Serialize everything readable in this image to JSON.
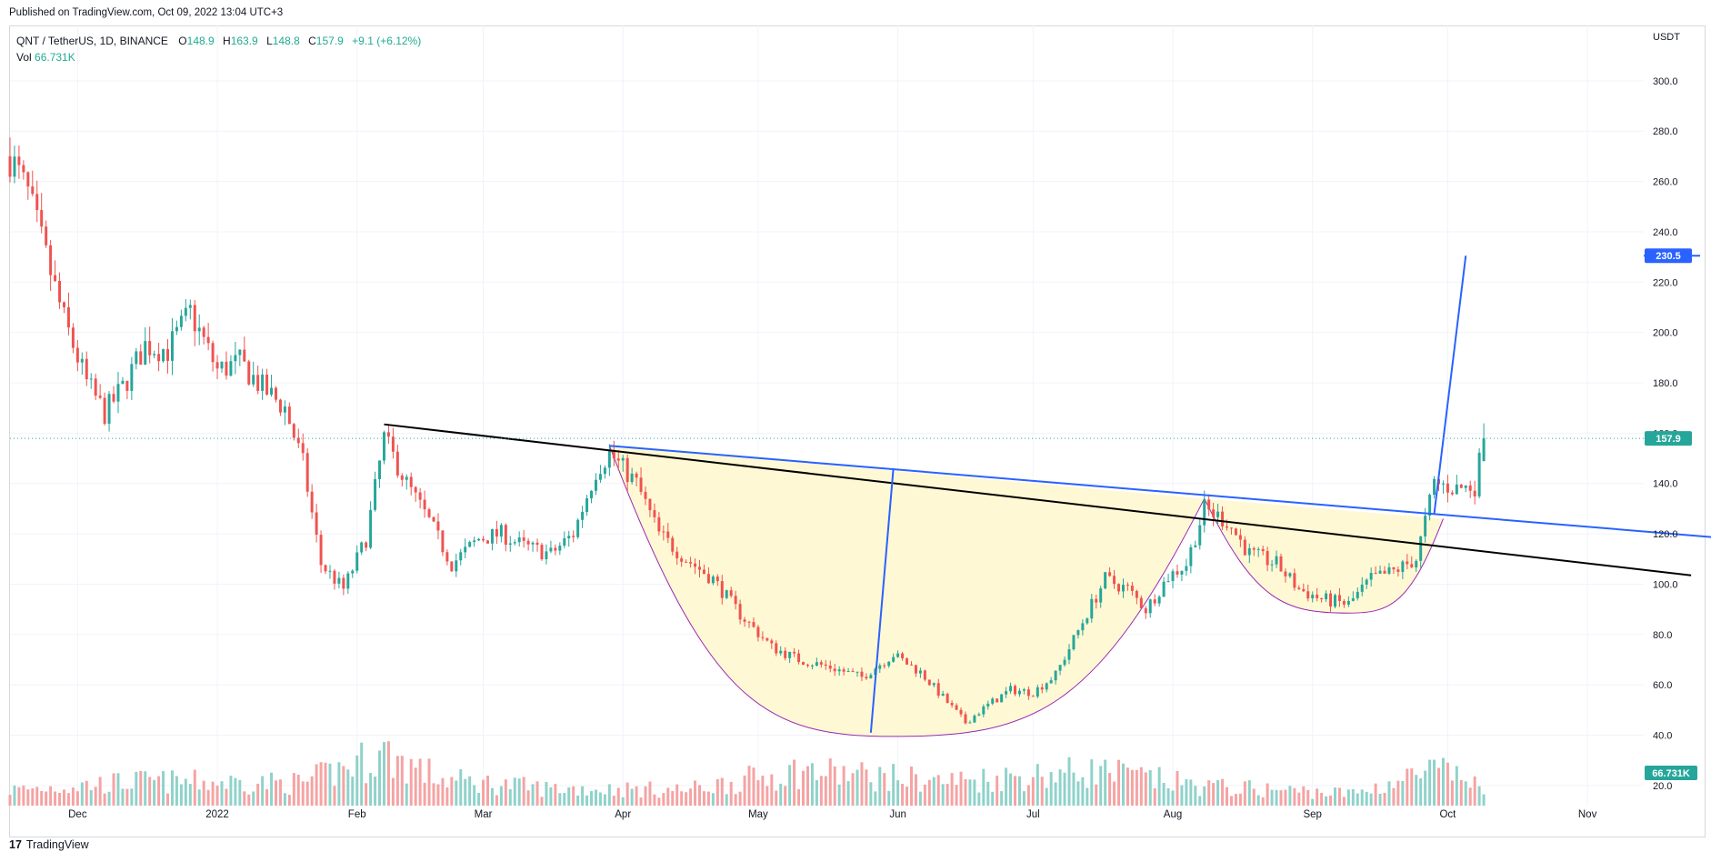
{
  "header": {
    "published": "Published on TradingView.com, Oct 09, 2022 13:04 UTC+3"
  },
  "legend": {
    "symbol": "QNT / TetherUS, 1D, BINANCE",
    "o_label": "O",
    "o_value": "148.9",
    "h_label": "H",
    "h_value": "163.9",
    "l_label": "L",
    "l_value": "148.8",
    "c_label": "C",
    "c_value": "157.9",
    "change": "+9.1 (+6.12%)",
    "vol_label": "Vol",
    "vol_value": "66.731K"
  },
  "footer": {
    "brand": "TradingView",
    "logo": "17"
  },
  "colors": {
    "up": "#26a69a",
    "down": "#ef5350",
    "vol_up": "#8fd2ca",
    "vol_down": "#f5a3a3",
    "trend_black": "#000000",
    "trend_blue": "#2962ff",
    "cup_fill": "#fff7cc",
    "cup_stroke": "#9c27b0",
    "price_tag": "#26a69a",
    "target_tag": "#2962ff",
    "grid": "#f0f3fa"
  },
  "chart_data": {
    "type": "candlestick",
    "currency": "USDT",
    "ylim": [
      12,
      322
    ],
    "y_ticks": [
      "300.0",
      "280.0",
      "260.0",
      "240.0",
      "220.0",
      "200.0",
      "180.0",
      "160.0",
      "140.0",
      "120.0",
      "100.0",
      "80.0",
      "60.0",
      "40.0",
      "20.0"
    ],
    "y_tick_values": [
      300,
      280,
      260,
      240,
      220,
      200,
      180,
      160,
      140,
      120,
      100,
      80,
      60,
      40,
      20
    ],
    "x_ticks": [
      "Dec",
      "2022",
      "Feb",
      "Mar",
      "Apr",
      "May",
      "Jun",
      "Jul",
      "Aug",
      "Sep",
      "Oct",
      "Nov"
    ],
    "x_tick_dates": [
      "2021-12-01",
      "2022-01-01",
      "2022-02-01",
      "2022-03-01",
      "2022-04-01",
      "2022-05-01",
      "2022-06-01",
      "2022-07-01",
      "2022-08-01",
      "2022-09-01",
      "2022-10-01",
      "2022-11-01"
    ],
    "x_range": [
      "2021-11-16",
      "2022-11-27"
    ],
    "last_price_label": "157.9",
    "last_price": 157.9,
    "target_label": "230.5",
    "target_price": 230.5,
    "volume_label": "66.731K",
    "price_path": [
      [
        "2021-11-16",
        270
      ],
      [
        "2021-11-20",
        255
      ],
      [
        "2021-11-24",
        230
      ],
      [
        "2021-11-28",
        205
      ],
      [
        "2021-12-03",
        180
      ],
      [
        "2021-12-07",
        168
      ],
      [
        "2021-12-11",
        178
      ],
      [
        "2021-12-16",
        195
      ],
      [
        "2021-12-21",
        193
      ],
      [
        "2021-12-26",
        208
      ],
      [
        "2022-01-01",
        185
      ],
      [
        "2022-01-06",
        188
      ],
      [
        "2022-01-11",
        178
      ],
      [
        "2022-01-16",
        170
      ],
      [
        "2022-01-20",
        148
      ],
      [
        "2022-01-24",
        108
      ],
      [
        "2022-01-29",
        98
      ],
      [
        "2022-02-03",
        118
      ],
      [
        "2022-02-07",
        158
      ],
      [
        "2022-02-12",
        140
      ],
      [
        "2022-02-17",
        125
      ],
      [
        "2022-02-22",
        108
      ],
      [
        "2022-02-28",
        118
      ],
      [
        "2022-03-05",
        120
      ],
      [
        "2022-03-10",
        115
      ],
      [
        "2022-03-16",
        112
      ],
      [
        "2022-03-21",
        120
      ],
      [
        "2022-03-26",
        145
      ],
      [
        "2022-03-29",
        152
      ],
      [
        "2022-04-04",
        140
      ],
      [
        "2022-04-09",
        120
      ],
      [
        "2022-04-15",
        110
      ],
      [
        "2022-04-21",
        102
      ],
      [
        "2022-04-27",
        88
      ],
      [
        "2022-05-04",
        75
      ],
      [
        "2022-05-10",
        70
      ],
      [
        "2022-05-17",
        67
      ],
      [
        "2022-05-24",
        63
      ],
      [
        "2022-05-31",
        72
      ],
      [
        "2022-06-06",
        65
      ],
      [
        "2022-06-11",
        55
      ],
      [
        "2022-06-16",
        45
      ],
      [
        "2022-06-21",
        52
      ],
      [
        "2022-06-26",
        58
      ],
      [
        "2022-07-01",
        57
      ],
      [
        "2022-07-06",
        64
      ],
      [
        "2022-07-12",
        85
      ],
      [
        "2022-07-17",
        102
      ],
      [
        "2022-07-22",
        98
      ],
      [
        "2022-07-26",
        90
      ],
      [
        "2022-07-31",
        103
      ],
      [
        "2022-08-04",
        108
      ],
      [
        "2022-08-08",
        130
      ],
      [
        "2022-08-13",
        125
      ],
      [
        "2022-08-18",
        112
      ],
      [
        "2022-08-24",
        108
      ],
      [
        "2022-08-29",
        98
      ],
      [
        "2022-09-03",
        94
      ],
      [
        "2022-09-09",
        92
      ],
      [
        "2022-09-14",
        102
      ],
      [
        "2022-09-19",
        105
      ],
      [
        "2022-09-24",
        110
      ],
      [
        "2022-09-28",
        140
      ],
      [
        "2022-10-03",
        138
      ],
      [
        "2022-10-07",
        139
      ],
      [
        "2022-10-09",
        157.9
      ]
    ],
    "volume_path": [
      [
        "2021-11-16",
        18
      ],
      [
        "2021-12-15",
        28
      ],
      [
        "2022-01-20",
        26
      ],
      [
        "2022-02-07",
        60
      ],
      [
        "2022-02-20",
        30
      ],
      [
        "2022-03-15",
        20
      ],
      [
        "2022-04-15",
        18
      ],
      [
        "2022-05-10",
        40
      ],
      [
        "2022-06-12",
        28
      ],
      [
        "2022-07-15",
        40
      ],
      [
        "2022-08-08",
        22
      ],
      [
        "2022-09-10",
        14
      ],
      [
        "2022-09-28",
        40
      ],
      [
        "2022-10-09",
        25
      ]
    ],
    "drawings": {
      "black_trendline": [
        [
          "2022-02-07",
          163.5
        ],
        [
          "2022-11-24",
          103.5
        ]
      ],
      "blue_neckline": [
        [
          "2022-03-29",
          155
        ],
        [
          "2022-11-30",
          118.5
        ]
      ],
      "cup_depth_line": [
        [
          "2022-05-26",
          41
        ],
        [
          "2022-05-31",
          146
        ]
      ],
      "breakout_projection": [
        [
          "2022-09-28",
          128
        ],
        [
          "2022-10-05",
          230.5
        ]
      ],
      "target_level": [
        [
          "2022-11-26",
          230.5
        ],
        [
          "2022-12-31",
          230.5
        ]
      ],
      "big_cup": {
        "left": [
          "2022-03-29",
          155
        ],
        "bottom": [
          "2022-05-31",
          39.5
        ],
        "right": [
          "2022-08-08",
          134
        ]
      },
      "small_cup": {
        "left": [
          "2022-08-08",
          134
        ],
        "bottom": [
          "2022-09-09",
          88.5
        ],
        "right": [
          "2022-09-30",
          126
        ]
      }
    }
  }
}
